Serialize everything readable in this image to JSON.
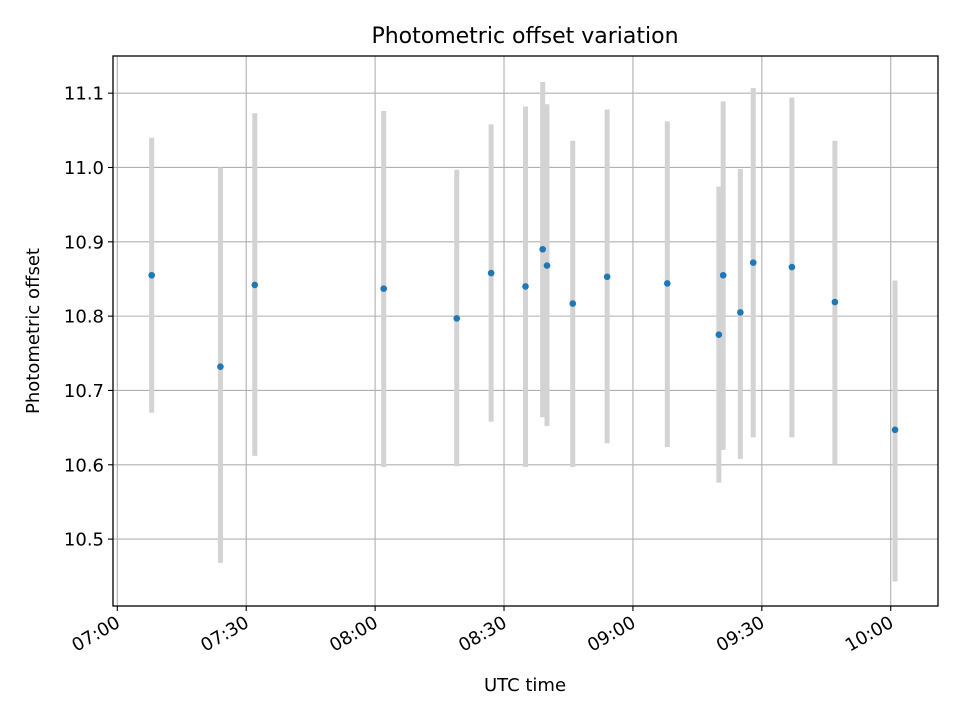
{
  "chart_data": {
    "type": "scatter",
    "title": "Photometric offset variation",
    "xlabel": "UTC time",
    "ylabel": "Photometric offset",
    "x_ticks": [
      "07:00",
      "07:30",
      "08:00",
      "08:30",
      "09:00",
      "09:30",
      "10:00"
    ],
    "y_ticks": [
      "10.5",
      "10.6",
      "10.7",
      "10.8",
      "10.9",
      "11.0",
      "11.1"
    ],
    "xlim": [
      "06:59",
      "10:11"
    ],
    "ylim": [
      10.41,
      11.15
    ],
    "grid": true,
    "legend": "none",
    "point_color": "#1f77b4",
    "errorbar_color": "#d3d3d3",
    "series": [
      {
        "points": [
          {
            "x": "07:08",
            "y": 10.855,
            "ylow": 10.67,
            "yhigh": 11.04
          },
          {
            "x": "07:24",
            "y": 10.732,
            "ylow": 10.468,
            "yhigh": 11.0
          },
          {
            "x": "07:32",
            "y": 10.842,
            "ylow": 10.612,
            "yhigh": 11.073
          },
          {
            "x": "08:02",
            "y": 10.837,
            "ylow": 10.597,
            "yhigh": 11.076
          },
          {
            "x": "08:19",
            "y": 10.797,
            "ylow": 10.598,
            "yhigh": 10.997
          },
          {
            "x": "08:27",
            "y": 10.858,
            "ylow": 10.658,
            "yhigh": 11.058
          },
          {
            "x": "08:35",
            "y": 10.84,
            "ylow": 10.597,
            "yhigh": 11.082
          },
          {
            "x": "08:39",
            "y": 10.89,
            "ylow": 10.664,
            "yhigh": 11.115
          },
          {
            "x": "08:40",
            "y": 10.868,
            "ylow": 10.652,
            "yhigh": 11.085
          },
          {
            "x": "08:46",
            "y": 10.817,
            "ylow": 10.597,
            "yhigh": 11.036
          },
          {
            "x": "08:54",
            "y": 10.853,
            "ylow": 10.629,
            "yhigh": 11.078
          },
          {
            "x": "09:08",
            "y": 10.844,
            "ylow": 10.624,
            "yhigh": 11.062
          },
          {
            "x": "09:20",
            "y": 10.775,
            "ylow": 10.576,
            "yhigh": 10.974
          },
          {
            "x": "09:21",
            "y": 10.855,
            "ylow": 10.62,
            "yhigh": 11.089
          },
          {
            "x": "09:25",
            "y": 10.805,
            "ylow": 10.608,
            "yhigh": 10.998
          },
          {
            "x": "09:28",
            "y": 10.872,
            "ylow": 10.637,
            "yhigh": 11.107
          },
          {
            "x": "09:37",
            "y": 10.866,
            "ylow": 10.637,
            "yhigh": 11.094
          },
          {
            "x": "09:47",
            "y": 10.819,
            "ylow": 10.6,
            "yhigh": 11.036
          },
          {
            "x": "10:01",
            "y": 10.647,
            "ylow": 10.443,
            "yhigh": 10.848
          }
        ]
      }
    ]
  }
}
